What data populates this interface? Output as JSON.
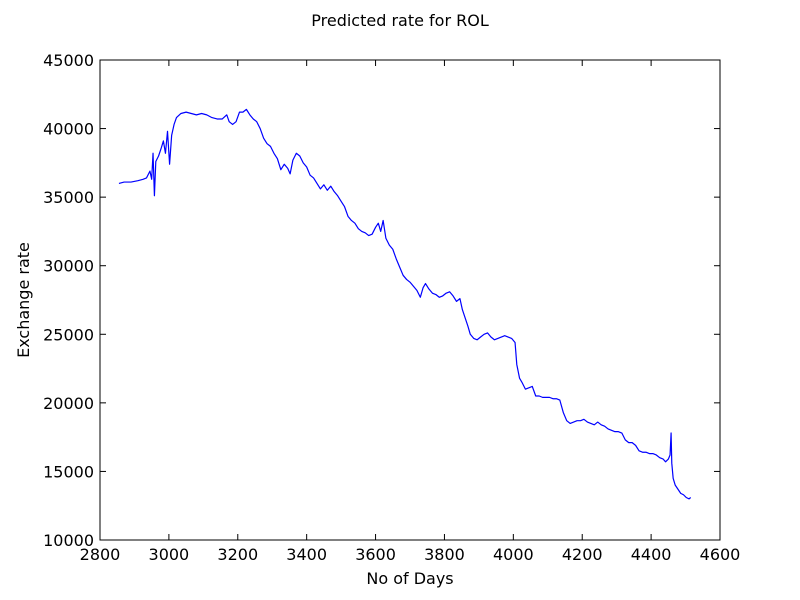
{
  "chart_data": {
    "type": "line",
    "title": "Predicted rate for ROL",
    "xlabel": "No of Days",
    "ylabel": "Exchange rate",
    "xlim": [
      2800,
      4600
    ],
    "ylim": [
      10000,
      45000
    ],
    "xticks": [
      "2800",
      "3000",
      "3200",
      "3400",
      "3600",
      "3800",
      "4000",
      "4200",
      "4400",
      "4600"
    ],
    "yticks": [
      "10000",
      "15000",
      "20000",
      "25000",
      "30000",
      "35000",
      "40000",
      "45000"
    ],
    "grid": false,
    "legend": "none",
    "series": [
      {
        "color": "#0000ff",
        "points": [
          [
            2855,
            36000
          ],
          [
            2870,
            36100
          ],
          [
            2890,
            36100
          ],
          [
            2910,
            36200
          ],
          [
            2925,
            36300
          ],
          [
            2935,
            36400
          ],
          [
            2945,
            36900
          ],
          [
            2950,
            36300
          ],
          [
            2954,
            38200
          ],
          [
            2958,
            35100
          ],
          [
            2962,
            37600
          ],
          [
            2970,
            38000
          ],
          [
            2978,
            38600
          ],
          [
            2984,
            39100
          ],
          [
            2990,
            38200
          ],
          [
            2996,
            39800
          ],
          [
            3002,
            37400
          ],
          [
            3008,
            39500
          ],
          [
            3015,
            40300
          ],
          [
            3022,
            40800
          ],
          [
            3035,
            41100
          ],
          [
            3050,
            41200
          ],
          [
            3065,
            41100
          ],
          [
            3080,
            41000
          ],
          [
            3095,
            41100
          ],
          [
            3110,
            41000
          ],
          [
            3125,
            40800
          ],
          [
            3140,
            40700
          ],
          [
            3155,
            40700
          ],
          [
            3168,
            41000
          ],
          [
            3175,
            40500
          ],
          [
            3185,
            40300
          ],
          [
            3195,
            40500
          ],
          [
            3205,
            41200
          ],
          [
            3215,
            41200
          ],
          [
            3225,
            41400
          ],
          [
            3235,
            41000
          ],
          [
            3245,
            40700
          ],
          [
            3255,
            40500
          ],
          [
            3265,
            40000
          ],
          [
            3275,
            39300
          ],
          [
            3285,
            38900
          ],
          [
            3295,
            38700
          ],
          [
            3305,
            38200
          ],
          [
            3315,
            37800
          ],
          [
            3325,
            37000
          ],
          [
            3335,
            37400
          ],
          [
            3345,
            37100
          ],
          [
            3352,
            36700
          ],
          [
            3360,
            37700
          ],
          [
            3370,
            38200
          ],
          [
            3380,
            38000
          ],
          [
            3390,
            37500
          ],
          [
            3400,
            37200
          ],
          [
            3410,
            36600
          ],
          [
            3420,
            36400
          ],
          [
            3430,
            36000
          ],
          [
            3440,
            35600
          ],
          [
            3450,
            35900
          ],
          [
            3460,
            35500
          ],
          [
            3470,
            35800
          ],
          [
            3480,
            35400
          ],
          [
            3490,
            35100
          ],
          [
            3500,
            34700
          ],
          [
            3510,
            34300
          ],
          [
            3520,
            33600
          ],
          [
            3530,
            33300
          ],
          [
            3540,
            33100
          ],
          [
            3550,
            32700
          ],
          [
            3560,
            32500
          ],
          [
            3570,
            32400
          ],
          [
            3580,
            32200
          ],
          [
            3590,
            32300
          ],
          [
            3600,
            32800
          ],
          [
            3608,
            33100
          ],
          [
            3615,
            32500
          ],
          [
            3622,
            33300
          ],
          [
            3630,
            32000
          ],
          [
            3640,
            31500
          ],
          [
            3650,
            31200
          ],
          [
            3660,
            30500
          ],
          [
            3670,
            29900
          ],
          [
            3680,
            29300
          ],
          [
            3690,
            29000
          ],
          [
            3700,
            28800
          ],
          [
            3710,
            28500
          ],
          [
            3720,
            28200
          ],
          [
            3730,
            27700
          ],
          [
            3738,
            28400
          ],
          [
            3745,
            28700
          ],
          [
            3755,
            28300
          ],
          [
            3765,
            28000
          ],
          [
            3775,
            27900
          ],
          [
            3785,
            27700
          ],
          [
            3795,
            27800
          ],
          [
            3805,
            28000
          ],
          [
            3815,
            28100
          ],
          [
            3825,
            27800
          ],
          [
            3835,
            27400
          ],
          [
            3845,
            27600
          ],
          [
            3852,
            26800
          ],
          [
            3860,
            26200
          ],
          [
            3868,
            25600
          ],
          [
            3875,
            25000
          ],
          [
            3885,
            24700
          ],
          [
            3895,
            24600
          ],
          [
            3905,
            24800
          ],
          [
            3915,
            25000
          ],
          [
            3925,
            25100
          ],
          [
            3935,
            24800
          ],
          [
            3945,
            24600
          ],
          [
            3955,
            24700
          ],
          [
            3965,
            24800
          ],
          [
            3975,
            24900
          ],
          [
            3985,
            24800
          ],
          [
            3995,
            24700
          ],
          [
            4005,
            24400
          ],
          [
            4010,
            22800
          ],
          [
            4018,
            21800
          ],
          [
            4025,
            21500
          ],
          [
            4035,
            21000
          ],
          [
            4045,
            21100
          ],
          [
            4055,
            21200
          ],
          [
            4065,
            20500
          ],
          [
            4075,
            20500
          ],
          [
            4085,
            20400
          ],
          [
            4095,
            20400
          ],
          [
            4105,
            20400
          ],
          [
            4115,
            20300
          ],
          [
            4125,
            20300
          ],
          [
            4135,
            20200
          ],
          [
            4145,
            19300
          ],
          [
            4155,
            18700
          ],
          [
            4165,
            18500
          ],
          [
            4175,
            18600
          ],
          [
            4185,
            18700
          ],
          [
            4195,
            18700
          ],
          [
            4205,
            18800
          ],
          [
            4215,
            18600
          ],
          [
            4225,
            18500
          ],
          [
            4235,
            18400
          ],
          [
            4245,
            18600
          ],
          [
            4255,
            18400
          ],
          [
            4265,
            18300
          ],
          [
            4275,
            18100
          ],
          [
            4285,
            18000
          ],
          [
            4295,
            17900
          ],
          [
            4305,
            17900
          ],
          [
            4315,
            17800
          ],
          [
            4325,
            17300
          ],
          [
            4335,
            17100
          ],
          [
            4345,
            17100
          ],
          [
            4355,
            16900
          ],
          [
            4365,
            16500
          ],
          [
            4375,
            16400
          ],
          [
            4385,
            16400
          ],
          [
            4395,
            16300
          ],
          [
            4405,
            16300
          ],
          [
            4415,
            16200
          ],
          [
            4425,
            16000
          ],
          [
            4435,
            15900
          ],
          [
            4442,
            15700
          ],
          [
            4450,
            15900
          ],
          [
            4455,
            16200
          ],
          [
            4458,
            17800
          ],
          [
            4460,
            15600
          ],
          [
            4464,
            14500
          ],
          [
            4470,
            14000
          ],
          [
            4478,
            13700
          ],
          [
            4486,
            13400
          ],
          [
            4494,
            13300
          ],
          [
            4502,
            13100
          ],
          [
            4510,
            13000
          ],
          [
            4515,
            13100
          ]
        ]
      }
    ]
  }
}
